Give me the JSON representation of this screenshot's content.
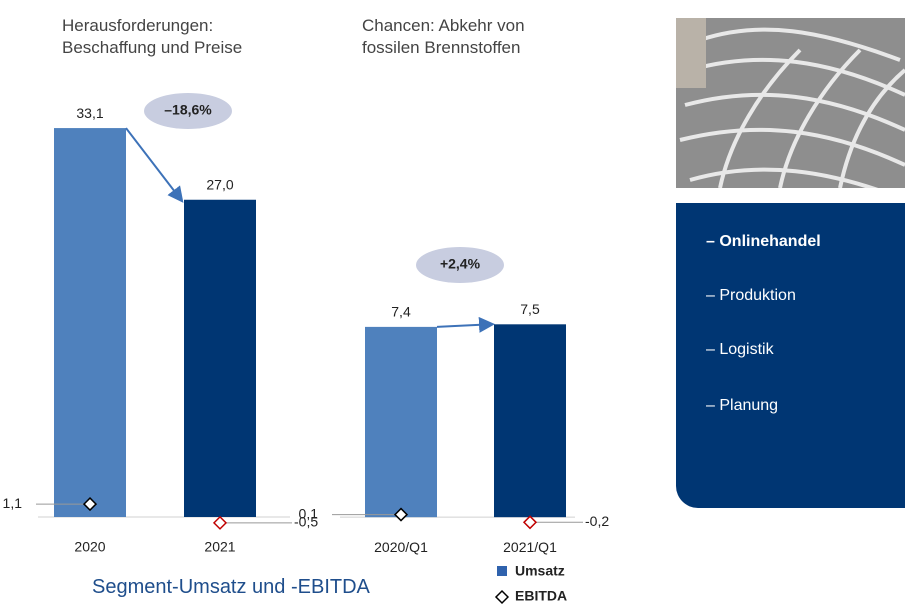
{
  "chart_data": [
    {
      "type": "bar",
      "title": "Herausforderungen: Beschaffung und Preise",
      "categories": [
        "2020",
        "2021"
      ],
      "series": [
        {
          "name": "Umsatz",
          "color": "#2f62ad",
          "colors": [
            "#4f81bd",
            "#003673"
          ],
          "values": [
            33.1,
            27.0
          ],
          "value_labels": [
            "33,1",
            "27,0"
          ]
        },
        {
          "name": "EBITDA",
          "color": "#000000",
          "colors": [
            "#000000",
            "#c00000"
          ],
          "values": [
            1.1,
            -0.5
          ],
          "value_labels": [
            "1,1",
            "-0,5"
          ]
        }
      ],
      "annotation": "–18,6%",
      "ylim": [
        -1,
        35
      ]
    },
    {
      "type": "bar",
      "title": "Chancen: Abkehr von fossilen Brennstoffen",
      "categories": [
        "2020/Q1",
        "2021/Q1"
      ],
      "series": [
        {
          "name": "Umsatz",
          "color": "#2f62ad",
          "colors": [
            "#4f81bd",
            "#003673"
          ],
          "values": [
            7.4,
            7.5
          ],
          "value_labels": [
            "7,4",
            "7,5"
          ]
        },
        {
          "name": "EBITDA",
          "color": "#000000",
          "colors": [
            "#000000",
            "#c00000"
          ],
          "values": [
            0.1,
            -0.2
          ],
          "value_labels": [
            "0,1",
            "-0,2"
          ]
        }
      ],
      "annotation": "+2,4%",
      "ylim": [
        -0.5,
        8.5
      ]
    }
  ],
  "caption": "Segment-Umsatz und -EBITDA",
  "panel": {
    "items": [
      "– Onlinehandel",
      "– Produktion",
      "– Logistik",
      "– Planung"
    ]
  }
}
